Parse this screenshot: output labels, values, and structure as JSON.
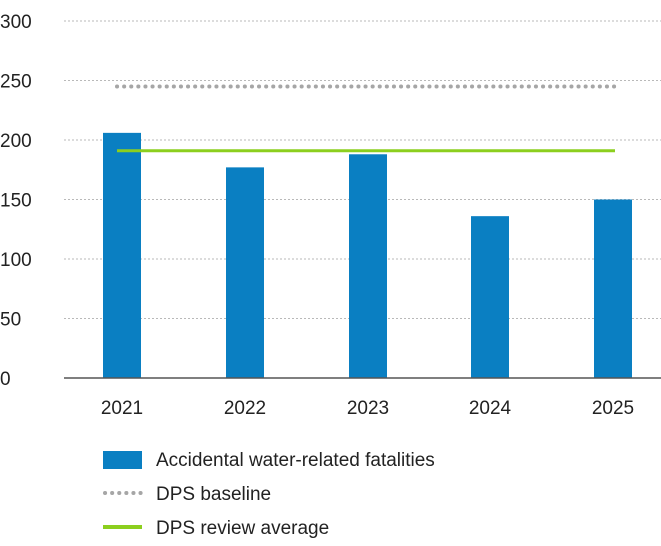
{
  "chart_data": {
    "type": "bar",
    "title": "",
    "xlabel": "",
    "ylabel": "",
    "categories": [
      "2021",
      "2022",
      "2023",
      "2024",
      "2025"
    ],
    "series": [
      {
        "name": "Accidental water-related fatalities",
        "type": "bar",
        "values": [
          206,
          177,
          188,
          136,
          150
        ]
      },
      {
        "name": "DPS baseline",
        "type": "line",
        "style": "dotted",
        "values": [
          245,
          245,
          245,
          245,
          245
        ]
      },
      {
        "name": "DPS review average",
        "type": "line",
        "style": "solid",
        "values": [
          191,
          191,
          191,
          191,
          191
        ]
      }
    ],
    "ylim": [
      0,
      300
    ],
    "yticks": [
      "0",
      "50",
      "100",
      "150",
      "200",
      "250",
      "300"
    ],
    "grid": true,
    "legend_position": "bottom"
  },
  "colors": {
    "bar": "#0a7fc2",
    "baseline": "#a6a6a6",
    "average": "#8ccf1e",
    "grid": "#b9b9b9",
    "axis": "#555555",
    "text": "#222222"
  }
}
